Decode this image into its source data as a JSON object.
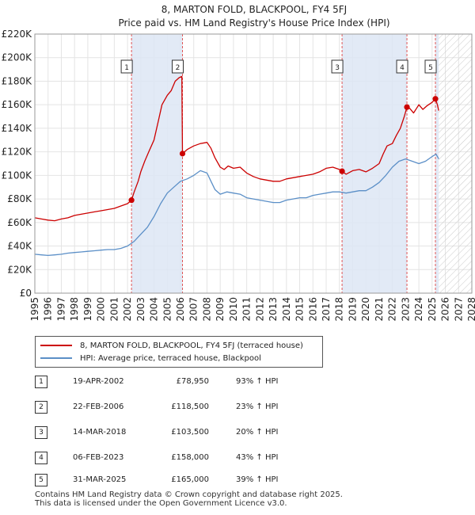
{
  "chart_data": {
    "type": "line",
    "title": "8, MARTON FOLD, BLACKPOOL, FY4 5FJ",
    "subtitle": "Price paid vs. HM Land Registry's House Price Index (HPI)",
    "xlim": [
      1995,
      2028
    ],
    "ylim": [
      0,
      220000
    ],
    "yticks": [
      0,
      20000,
      40000,
      60000,
      80000,
      100000,
      120000,
      140000,
      160000,
      180000,
      200000,
      220000
    ],
    "ytick_labels": [
      "£0",
      "£20K",
      "£40K",
      "£60K",
      "£80K",
      "£100K",
      "£120K",
      "£140K",
      "£160K",
      "£180K",
      "£200K",
      "£220K"
    ],
    "xticks": [
      1995,
      1996,
      1997,
      1998,
      1999,
      2000,
      2001,
      2002,
      2003,
      2004,
      2005,
      2006,
      2007,
      2008,
      2009,
      2010,
      2011,
      2012,
      2013,
      2014,
      2015,
      2016,
      2017,
      2018,
      2019,
      2020,
      2021,
      2022,
      2023,
      2024,
      2025,
      2026,
      2027,
      2028
    ],
    "grid": true,
    "hatched_future_from": 2025.5,
    "series": [
      {
        "name": "8, MARTON FOLD, BLACKPOOL, FY4 5FJ (terraced house)",
        "color": "#cc0000",
        "x": [
          1995.0,
          1995.5,
          1996.0,
          1996.5,
          1997.0,
          1997.5,
          1998.0,
          1998.5,
          1999.0,
          1999.5,
          2000.0,
          2000.5,
          2001.0,
          2001.5,
          2002.0,
          2002.3,
          2002.5,
          2002.8,
          2003.0,
          2003.3,
          2003.6,
          2004.0,
          2004.3,
          2004.6,
          2005.0,
          2005.3,
          2005.6,
          2005.9,
          2006.1,
          2006.15,
          2006.5,
          2007.0,
          2007.5,
          2008.0,
          2008.3,
          2008.6,
          2009.0,
          2009.3,
          2009.6,
          2010.0,
          2010.5,
          2011.0,
          2011.5,
          2012.0,
          2012.5,
          2013.0,
          2013.5,
          2014.0,
          2014.5,
          2015.0,
          2015.5,
          2016.0,
          2016.5,
          2017.0,
          2017.5,
          2018.0,
          2018.2,
          2018.5,
          2019.0,
          2019.5,
          2020.0,
          2020.5,
          2021.0,
          2021.3,
          2021.6,
          2022.0,
          2022.3,
          2022.6,
          2022.9,
          2023.1,
          2023.3,
          2023.6,
          2024.0,
          2024.3,
          2024.6,
          2025.0,
          2025.25,
          2025.4,
          2025.5
        ],
        "values": [
          64000,
          63000,
          62000,
          61500,
          63000,
          64000,
          66000,
          67000,
          68000,
          69000,
          70000,
          71000,
          72000,
          74000,
          76000,
          78950,
          86000,
          95000,
          103000,
          112000,
          120000,
          130000,
          145000,
          160000,
          168000,
          172000,
          180000,
          183000,
          184000,
          118500,
          122000,
          125000,
          127000,
          128000,
          123000,
          115000,
          107000,
          105000,
          108000,
          106000,
          107000,
          102000,
          99000,
          97000,
          96000,
          95000,
          95000,
          97000,
          98000,
          99000,
          100000,
          101000,
          103000,
          106000,
          107000,
          105000,
          103500,
          101000,
          104000,
          105000,
          103000,
          106000,
          110000,
          118000,
          125000,
          127000,
          134000,
          140000,
          150000,
          158000,
          157000,
          153000,
          160000,
          156000,
          159000,
          162000,
          165000,
          160000,
          155000
        ]
      },
      {
        "name": "HPI: Average price, terraced house, Blackpool",
        "color": "#5b8fc7",
        "x": [
          1995.0,
          1995.5,
          1996.0,
          1996.5,
          1997.0,
          1997.5,
          1998.0,
          1998.5,
          1999.0,
          1999.5,
          2000.0,
          2000.5,
          2001.0,
          2001.5,
          2002.0,
          2002.5,
          2003.0,
          2003.5,
          2004.0,
          2004.5,
          2005.0,
          2005.5,
          2006.0,
          2006.5,
          2007.0,
          2007.5,
          2008.0,
          2008.3,
          2008.6,
          2009.0,
          2009.5,
          2010.0,
          2010.5,
          2011.0,
          2011.5,
          2012.0,
          2012.5,
          2013.0,
          2013.5,
          2014.0,
          2014.5,
          2015.0,
          2015.5,
          2016.0,
          2016.5,
          2017.0,
          2017.5,
          2018.0,
          2018.5,
          2019.0,
          2019.5,
          2020.0,
          2020.5,
          2021.0,
          2021.5,
          2022.0,
          2022.5,
          2023.0,
          2023.5,
          2024.0,
          2024.5,
          2025.0,
          2025.3,
          2025.5
        ],
        "values": [
          33000,
          32500,
          32000,
          32500,
          33000,
          34000,
          34500,
          35000,
          35500,
          36000,
          36500,
          37000,
          37000,
          38000,
          40000,
          44000,
          50000,
          56000,
          65000,
          76000,
          85000,
          90000,
          95000,
          97000,
          100000,
          104000,
          102000,
          95000,
          88000,
          84000,
          86000,
          85000,
          84000,
          81000,
          80000,
          79000,
          78000,
          77000,
          77000,
          79000,
          80000,
          81000,
          81000,
          83000,
          84000,
          85000,
          86000,
          86000,
          85000,
          86000,
          87000,
          87000,
          90000,
          94000,
          100000,
          107000,
          112000,
          114000,
          112000,
          110000,
          112000,
          116000,
          118000,
          114000
        ]
      }
    ],
    "sales": [
      {
        "id": "1",
        "x": 2002.3,
        "value": 78950
      },
      {
        "id": "2",
        "x": 2006.15,
        "value": 118500
      },
      {
        "id": "3",
        "x": 2018.2,
        "value": 103500
      },
      {
        "id": "4",
        "x": 2023.1,
        "value": 158000
      },
      {
        "id": "5",
        "x": 2025.25,
        "value": 165000
      }
    ]
  },
  "legend": {
    "property_label": "8, MARTON FOLD, BLACKPOOL, FY4 5FJ (terraced house)",
    "hpi_label": "HPI: Average price, terraced house, Blackpool"
  },
  "transactions": [
    {
      "num": "1",
      "date": "19-APR-2002",
      "price": "£78,950",
      "hpi": "93% ↑ HPI"
    },
    {
      "num": "2",
      "date": "22-FEB-2006",
      "price": "£118,500",
      "hpi": "23% ↑ HPI"
    },
    {
      "num": "3",
      "date": "14-MAR-2018",
      "price": "£103,500",
      "hpi": "20% ↑ HPI"
    },
    {
      "num": "4",
      "date": "06-FEB-2023",
      "price": "£158,000",
      "hpi": "43% ↑ HPI"
    },
    {
      "num": "5",
      "date": "31-MAR-2025",
      "price": "£165,000",
      "hpi": "39% ↑ HPI"
    }
  ],
  "footer": {
    "line1": "Contains HM Land Registry data © Crown copyright and database right 2025.",
    "line2": "This data is licensed under the Open Government Licence v3.0."
  }
}
